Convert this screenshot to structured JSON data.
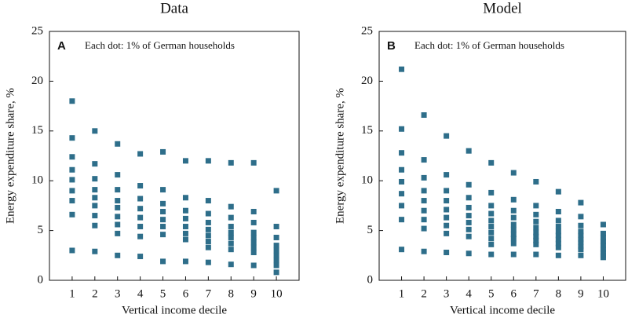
{
  "chart_data": [
    {
      "type": "scatter",
      "title": "Data",
      "panel_label": "A",
      "annotation": "Each dot: 1% of German households",
      "x_label": "Vertical income decile",
      "y_label": "Energy expenditure share, %",
      "color": "#2e6e8a",
      "xlim": [
        0,
        11
      ],
      "xticks": [
        1,
        2,
        3,
        4,
        5,
        6,
        7,
        8,
        9,
        10
      ],
      "ylim": [
        0,
        25
      ],
      "yticks": [
        0,
        5,
        10,
        15,
        20,
        25
      ],
      "x": [
        1,
        1,
        1,
        1,
        1,
        1,
        1,
        1,
        1,
        2,
        2,
        2,
        2,
        2,
        2,
        2,
        2,
        2,
        3,
        3,
        3,
        3,
        3,
        3,
        3,
        3,
        3,
        4,
        4,
        4,
        4,
        4,
        4,
        4,
        4,
        5,
        5,
        5,
        5,
        5,
        5,
        5,
        5,
        6,
        6,
        6,
        6,
        6,
        6,
        6,
        6,
        7,
        7,
        7,
        7,
        7,
        7,
        7,
        7,
        7,
        8,
        8,
        8,
        8,
        8,
        8,
        8,
        8,
        8,
        9,
        9,
        9,
        9,
        9,
        9,
        9,
        9,
        9,
        10,
        10,
        10,
        10,
        10,
        10,
        10,
        10,
        10
      ],
      "values": [
        18.0,
        14.3,
        12.4,
        11.1,
        10.1,
        9.0,
        8.0,
        6.6,
        3.0,
        15.0,
        11.7,
        10.2,
        9.1,
        8.3,
        7.5,
        6.5,
        5.5,
        2.9,
        13.7,
        10.6,
        9.1,
        8.0,
        7.3,
        6.4,
        5.6,
        4.7,
        2.5,
        12.7,
        9.5,
        8.2,
        7.2,
        6.3,
        5.4,
        4.4,
        2.4,
        12.9,
        9.1,
        7.7,
        6.9,
        6.1,
        5.4,
        4.6,
        1.9,
        12.0,
        8.3,
        7.0,
        6.2,
        5.4,
        4.7,
        4.1,
        1.9,
        12.0,
        8.0,
        6.7,
        5.8,
        5.1,
        4.5,
        3.9,
        3.3,
        1.8,
        11.8,
        7.4,
        6.3,
        5.4,
        4.8,
        4.3,
        3.7,
        3.1,
        1.6,
        11.8,
        6.9,
        5.8,
        4.8,
        4.3,
        3.8,
        3.3,
        2.8,
        1.5,
        9.0,
        5.4,
        4.3,
        3.5,
        3.0,
        2.5,
        2.0,
        1.5,
        0.8
      ]
    },
    {
      "type": "scatter",
      "title": "Model",
      "panel_label": "B",
      "annotation": "Each dot: 1% of German households",
      "x_label": "Vertical income decile",
      "y_label": "Energy expenditure share, %",
      "color": "#2e6e8a",
      "xlim": [
        0,
        11
      ],
      "xticks": [
        1,
        2,
        3,
        4,
        5,
        6,
        7,
        8,
        9,
        10
      ],
      "ylim": [
        0,
        25
      ],
      "yticks": [
        0,
        5,
        10,
        15,
        20,
        25
      ],
      "x": [
        1,
        1,
        1,
        1,
        1,
        1,
        1,
        1,
        1,
        2,
        2,
        2,
        2,
        2,
        2,
        2,
        2,
        2,
        3,
        3,
        3,
        3,
        3,
        3,
        3,
        3,
        3,
        4,
        4,
        4,
        4,
        4,
        4,
        4,
        4,
        4,
        5,
        5,
        5,
        5,
        5,
        5,
        5,
        5,
        5,
        5,
        6,
        6,
        6,
        6,
        6,
        6,
        6,
        6,
        6,
        6,
        7,
        7,
        7,
        7,
        7,
        7,
        7,
        7,
        7,
        7,
        8,
        8,
        8,
        8,
        8,
        8,
        8,
        8,
        8,
        8,
        9,
        9,
        9,
        9,
        9,
        9,
        9,
        9,
        9,
        9,
        10,
        10,
        10,
        10,
        10,
        10,
        10,
        10,
        10
      ],
      "values": [
        21.2,
        15.2,
        12.8,
        11.1,
        9.9,
        8.7,
        7.5,
        6.1,
        3.1,
        16.6,
        12.1,
        10.3,
        9.0,
        8.0,
        7.0,
        6.1,
        5.2,
        2.9,
        14.5,
        10.6,
        9.0,
        8.0,
        7.1,
        6.3,
        5.5,
        4.7,
        2.8,
        13.0,
        9.6,
        8.3,
        7.3,
        6.5,
        5.8,
        5.1,
        4.4,
        2.7,
        11.8,
        8.8,
        7.5,
        6.7,
        6.0,
        5.4,
        4.8,
        4.2,
        3.6,
        2.6,
        10.8,
        8.1,
        7.0,
        6.3,
        5.6,
        5.1,
        4.6,
        4.2,
        3.7,
        2.6,
        9.9,
        7.5,
        6.6,
        5.9,
        5.3,
        4.8,
        4.4,
        4.0,
        3.6,
        2.6,
        8.9,
        6.9,
        6.0,
        5.4,
        4.9,
        4.5,
        4.1,
        3.7,
        3.3,
        2.5,
        7.8,
        6.4,
        5.5,
        4.9,
        4.5,
        4.1,
        3.8,
        3.4,
        3.1,
        2.5,
        5.6,
        4.7,
        4.3,
        3.9,
        3.5,
        3.1,
        2.8,
        2.5,
        2.3
      ]
    }
  ]
}
